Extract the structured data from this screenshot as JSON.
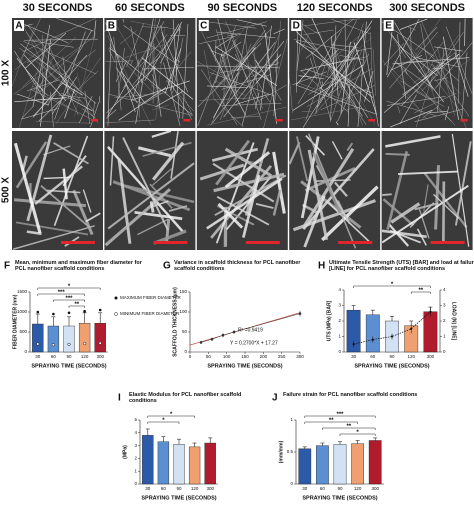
{
  "sem": {
    "columns": [
      "30 SECONDS",
      "60 SECONDS",
      "90 SECONDS",
      "120 SECONDS",
      "300 SECONDS"
    ],
    "letters": [
      "A",
      "B",
      "C",
      "D",
      "E"
    ],
    "rows": [
      "100 X",
      "500 X"
    ]
  },
  "chart_data": [
    {
      "type": "bar",
      "letter": "F",
      "title": "Mean, minimum and maximum fiber diameter for PCL nanofiber scaffold conditions",
      "categories": [
        "30",
        "60",
        "90",
        "120",
        "300"
      ],
      "values": [
        700,
        650,
        650,
        720,
        720
      ],
      "errors": [
        250,
        230,
        230,
        260,
        260
      ],
      "max_values": [
        1000,
        950,
        980,
        1020,
        1050
      ],
      "min_values": [
        200,
        180,
        190,
        210,
        220
      ],
      "max_label": "MAXIMUM FIBER DIAMETER",
      "min_label": "MINIMUM FIBER DIAMETER",
      "colors": [
        "#2b5aa8",
        "#5b8fd1",
        "#d2e2f4",
        "#f0a070",
        "#b01c2e"
      ],
      "ylim": [
        0,
        1500
      ],
      "yticks": [
        0,
        500,
        1000,
        1500
      ],
      "ylabel": "FIBER DIAMETER (nm)",
      "xlabel": "SPRAYING TIME (SECONDS)",
      "pairs": [
        {
          "between": [
            "30",
            "300"
          ],
          "label": "*"
        },
        {
          "between": [
            "30",
            "120"
          ],
          "label": "***"
        },
        {
          "between": [
            "60",
            "120"
          ],
          "label": "***"
        },
        {
          "between": [
            "90",
            "120"
          ],
          "label": "**"
        }
      ]
    },
    {
      "type": "scatter",
      "letter": "G",
      "title": "Variance in scaffold thickness for PCL nanofiber scaffold conditions",
      "x": [
        30,
        60,
        90,
        120,
        300
      ],
      "values": [
        24,
        32,
        42,
        50,
        96
      ],
      "errors": [
        4,
        4,
        5,
        5,
        7
      ],
      "color": "#333333",
      "fit": {
        "slope": 0.27,
        "intercept": 17.27
      },
      "xlim": [
        0,
        300
      ],
      "xticks": [
        0,
        50,
        100,
        150,
        200,
        250,
        300
      ],
      "ylim": [
        0,
        150
      ],
      "yticks": [
        0,
        50,
        100,
        150
      ],
      "annotations": [
        "R² =0.9419",
        "Y = 0.2700*X + 17.27"
      ],
      "ylabel": "SCAFFOLD THICKNESS (µm)",
      "xlabel": "SPRAYING TIME (SECONDS)"
    },
    {
      "type": "bar",
      "letter": "H",
      "title": "Ultimate Tensile Strength (UTS) [BAR] and load at failure [LINE] for PCL nanofiber scaffold conditions",
      "categories": [
        "30",
        "60",
        "90",
        "120",
        "300"
      ],
      "values": [
        2.7,
        2.4,
        2.0,
        1.7,
        2.6
      ],
      "errors": [
        0.3,
        0.3,
        0.3,
        0.3,
        0.3
      ],
      "colors": [
        "#2b5aa8",
        "#5b8fd1",
        "#d2e2f4",
        "#f0a070",
        "#b01c2e"
      ],
      "line_values": [
        0.5,
        0.8,
        1.0,
        1.5,
        2.6
      ],
      "line_errors": [
        0.2,
        0.2,
        0.2,
        0.3,
        0.3
      ],
      "ylim": [
        0,
        4
      ],
      "yticks": [
        0,
        1,
        2,
        3,
        4
      ],
      "y2lim": [
        0,
        4
      ],
      "y2ticks": [
        0,
        1,
        2,
        3,
        4
      ],
      "ylabel": "UTS (MPa) [BAR]",
      "y2label": "LOAD (N) [LINE]",
      "xlabel": "SPRAYING TIME (SECONDS)",
      "pairs": [
        {
          "between": [
            "30",
            "300"
          ],
          "label": "*"
        },
        {
          "between": [
            "120",
            "300"
          ],
          "label": "**"
        }
      ]
    },
    {
      "type": "bar",
      "letter": "I",
      "title": "Elastic Modulus for PCL nanofiber scaffold conditions",
      "categories": [
        "30",
        "60",
        "90",
        "120",
        "300"
      ],
      "values": [
        3.8,
        3.3,
        3.1,
        2.9,
        3.2
      ],
      "errors": [
        0.5,
        0.4,
        0.4,
        0.3,
        0.4
      ],
      "colors": [
        "#2b5aa8",
        "#5b8fd1",
        "#d2e2f4",
        "#f0a070",
        "#b01c2e"
      ],
      "ylim": [
        0,
        5
      ],
      "yticks": [
        0,
        1,
        2,
        3,
        4,
        5
      ],
      "ylabel": "(MPa)",
      "xlabel": "SPRAYING TIME (SECONDS)",
      "pairs": [
        {
          "between": [
            "30",
            "120"
          ],
          "label": "*"
        },
        {
          "between": [
            "30",
            "90"
          ],
          "label": "*"
        }
      ]
    },
    {
      "type": "bar",
      "letter": "J",
      "title": "Failure strain for PCL nanofiber scaffold conditions",
      "categories": [
        "30",
        "60",
        "90",
        "120",
        "300"
      ],
      "values": [
        0.55,
        0.6,
        0.62,
        0.63,
        0.68
      ],
      "errors": [
        0.03,
        0.04,
        0.04,
        0.05,
        0.04
      ],
      "colors": [
        "#2b5aa8",
        "#5b8fd1",
        "#d2e2f4",
        "#f0a070",
        "#b01c2e"
      ],
      "ylim": [
        0,
        1
      ],
      "yticks": [
        0,
        0.5,
        1
      ],
      "ylabel": "(mm/mm)",
      "xlabel": "SPRAYING TIME (SECONDS)",
      "pairs": [
        {
          "between": [
            "30",
            "300"
          ],
          "label": "***"
        },
        {
          "between": [
            "30",
            "120"
          ],
          "label": "**"
        },
        {
          "between": [
            "60",
            "300"
          ],
          "label": "**"
        },
        {
          "between": [
            "90",
            "300"
          ],
          "label": "*"
        }
      ]
    }
  ]
}
